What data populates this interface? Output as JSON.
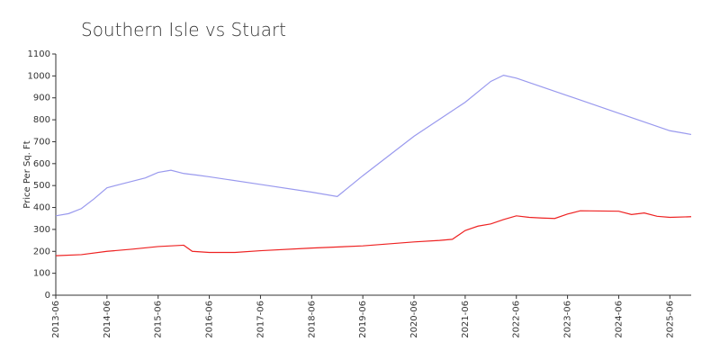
{
  "chart_data": {
    "type": "line",
    "title": "Southern Isle vs Stuart",
    "ylabel": "Price Per Sq. Ft",
    "xlim": [
      "2013-06",
      "2025-11"
    ],
    "xticks": [
      "2013-06",
      "2014-06",
      "2015-06",
      "2016-06",
      "2017-06",
      "2018-06",
      "2019-06",
      "2020-06",
      "2021-06",
      "2022-06",
      "2023-06",
      "2024-06",
      "2025-06"
    ],
    "ylim": [
      0,
      1100
    ],
    "yticks": [
      0,
      100,
      200,
      300,
      400,
      500,
      600,
      700,
      800,
      900,
      1000,
      1100
    ],
    "series": [
      {
        "color": "#9999ee",
        "x": [
          "2013-06",
          "2013-09",
          "2013-12",
          "2014-03",
          "2014-06",
          "2014-09",
          "2014-12",
          "2015-03",
          "2015-06",
          "2015-09",
          "2015-12",
          "2016-03",
          "2016-06",
          "2017-06",
          "2018-06",
          "2018-12",
          "2019-06",
          "2020-06",
          "2021-06",
          "2021-12",
          "2022-03",
          "2022-06",
          "2023-06",
          "2024-06",
          "2025-06",
          "2025-11"
        ],
        "values": [
          362,
          372,
          395,
          440,
          490,
          505,
          520,
          535,
          560,
          570,
          555,
          548,
          540,
          505,
          470,
          450,
          545,
          725,
          880,
          975,
          1003,
          990,
          910,
          830,
          750,
          733
        ]
      },
      {
        "color": "#ee2222",
        "x": [
          "2013-06",
          "2013-12",
          "2014-06",
          "2014-12",
          "2015-06",
          "2015-12",
          "2016-02",
          "2016-06",
          "2016-12",
          "2017-06",
          "2018-06",
          "2019-06",
          "2020-06",
          "2020-12",
          "2021-03",
          "2021-06",
          "2021-09",
          "2021-12",
          "2022-03",
          "2022-06",
          "2022-09",
          "2022-12",
          "2023-03",
          "2023-06",
          "2023-09",
          "2024-06",
          "2024-09",
          "2024-12",
          "2025-03",
          "2025-06",
          "2025-11"
        ],
        "values": [
          180,
          185,
          200,
          210,
          222,
          228,
          200,
          195,
          195,
          203,
          215,
          225,
          243,
          250,
          255,
          295,
          315,
          325,
          345,
          362,
          355,
          352,
          350,
          370,
          385,
          383,
          368,
          375,
          360,
          355,
          358
        ]
      }
    ]
  }
}
